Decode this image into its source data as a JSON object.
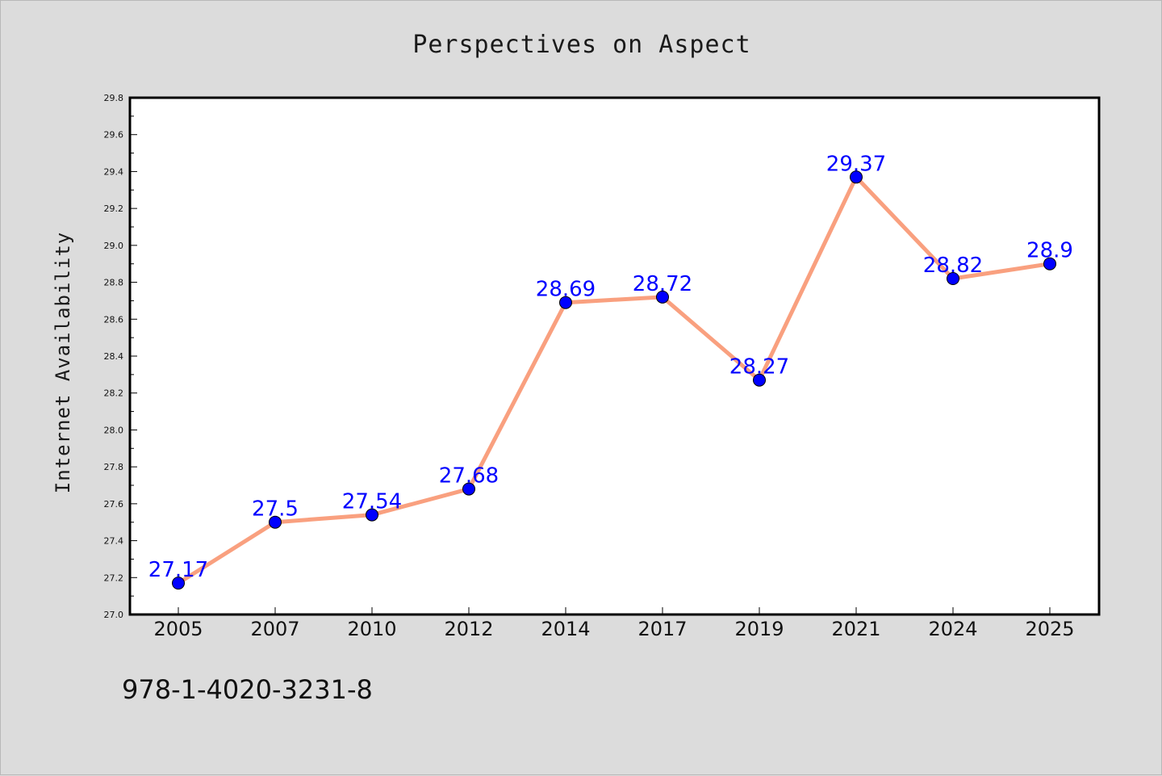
{
  "footer_text": "978-1-4020-3231-8",
  "colors": {
    "background": "#dcdcdc",
    "plot_background": "#ffffff",
    "line": "#f9a07f",
    "marker": "#0000ff",
    "data_label": "#0000ff"
  },
  "chart_data": {
    "type": "line",
    "title": "Perspectives on Aspect",
    "xlabel": "",
    "ylabel": "Internet Availability",
    "categories": [
      "2005",
      "2007",
      "2010",
      "2012",
      "2014",
      "2017",
      "2019",
      "2021",
      "2024",
      "2025"
    ],
    "series": [
      {
        "values": [
          27.17,
          27.5,
          27.54,
          27.68,
          28.69,
          28.72,
          28.27,
          29.37,
          28.82,
          28.9
        ],
        "labels": [
          "27.17",
          "27.5",
          "27.54",
          "27.68",
          "28.69",
          "28.72",
          "28.27",
          "29.37",
          "28.82",
          "28.9"
        ]
      }
    ],
    "ylim": [
      27.0,
      29.8
    ],
    "yticks": [
      "27.0",
      "27.2",
      "27.4",
      "27.6",
      "27.8",
      "28.0",
      "28.2",
      "28.4",
      "28.6",
      "28.8",
      "29.0",
      "29.2",
      "29.4",
      "29.6",
      "29.8"
    ],
    "grid": false,
    "legend": "none"
  }
}
